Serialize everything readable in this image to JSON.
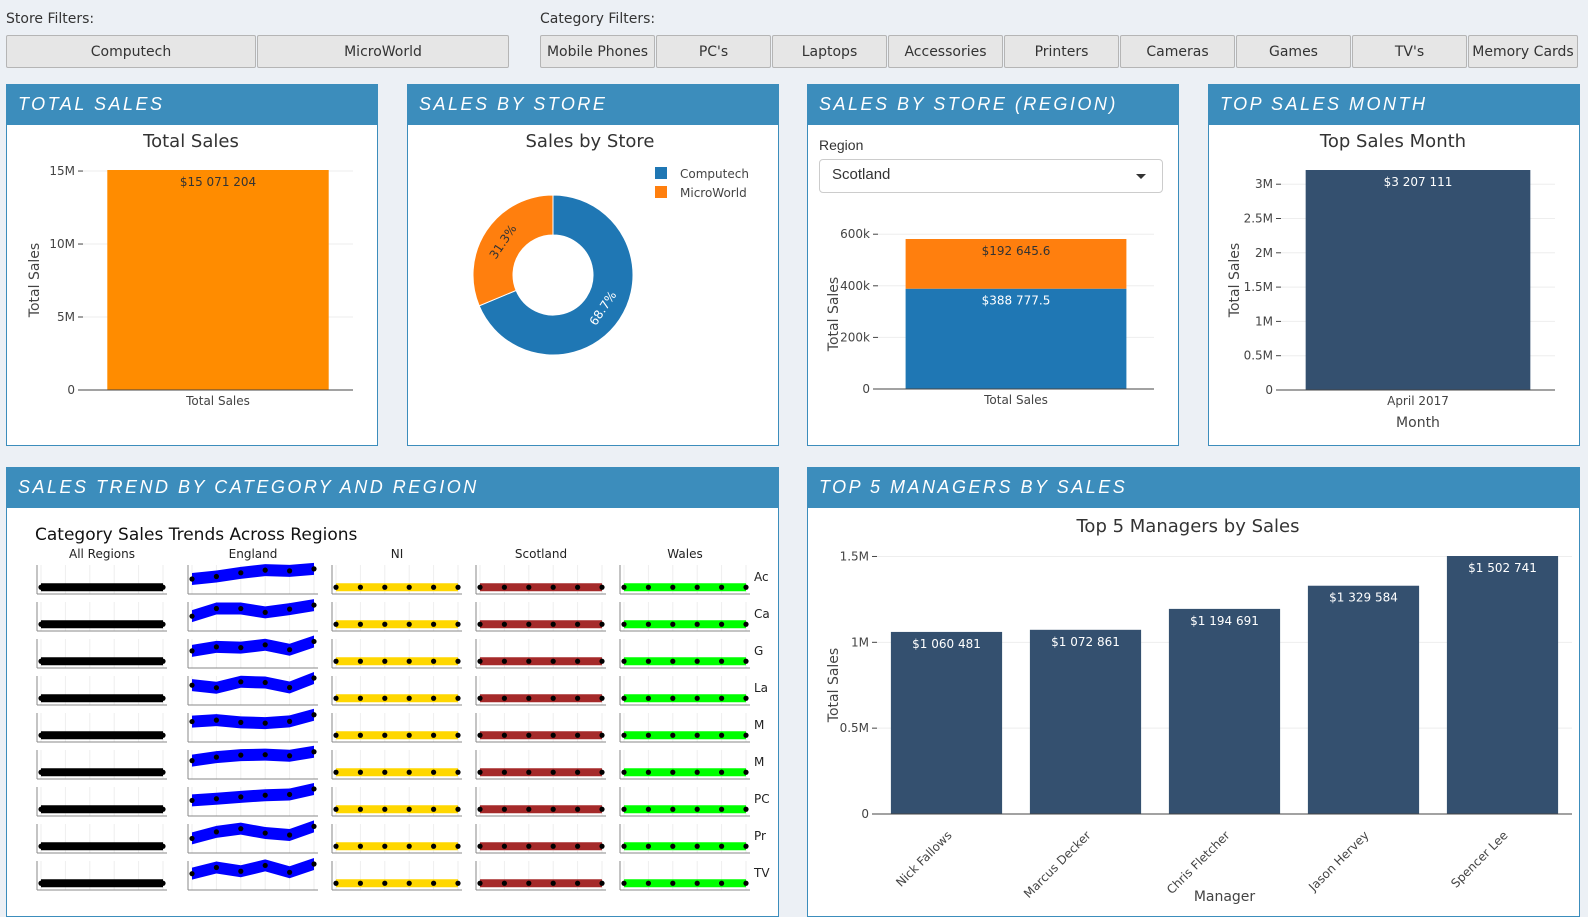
{
  "store_filters": {
    "label": "Store Filters:",
    "buttons": [
      "Computech",
      "MicroWorld"
    ]
  },
  "category_filters": {
    "label": "Category Filters:",
    "buttons": [
      "Mobile Phones",
      "PC's",
      "Laptops",
      "Accessories",
      "Printers",
      "Cameras",
      "Games",
      "TV's",
      "Memory Cards"
    ]
  },
  "panels": {
    "total_sales": "TOTAL SALES",
    "sales_by_store": "SALES BY STORE",
    "sales_by_store_region": "SALES BY STORE (REGION)",
    "top_sales_month": "TOP SALES MONTH",
    "sales_trend": "SALES TREND BY CATEGORY AND REGION",
    "top_managers": "TOP 5 MANAGERS BY SALES"
  },
  "region_select": {
    "label": "Region",
    "value": "Scotland"
  },
  "colors": {
    "header": "#3c8dbc",
    "orange": "#ff8c00",
    "plotly_orange": "#ff7f0e",
    "plotly_blue": "#1f77b4",
    "navy": "#34506f",
    "all_regions": "#000000",
    "england": "#0000ff",
    "ni": "#ffd700",
    "scotland": "#a52a2a",
    "wales": "#00ff00"
  },
  "chart_data": [
    {
      "id": "total_sales",
      "type": "bar",
      "title": "Total Sales",
      "categories": [
        "Total Sales"
      ],
      "values": [
        15071204
      ],
      "data_labels": [
        "$15 071 204"
      ],
      "ylabel": "Total Sales",
      "xlabel": "",
      "ylim": [
        0,
        15071204
      ],
      "yticks": [
        0,
        5000000,
        10000000,
        15000000
      ],
      "ytick_labels": [
        "0",
        "5M",
        "10M",
        "15M"
      ],
      "color": "#ff8c00"
    },
    {
      "id": "sales_by_store",
      "type": "pie",
      "title": "Sales by Store",
      "hole": 0.5,
      "labels": [
        "Computech",
        "MicroWorld"
      ],
      "values": [
        68.7,
        31.3
      ],
      "data_labels": [
        "68.7%",
        "31.3%"
      ],
      "colors": [
        "#1f77b4",
        "#ff7f0e"
      ],
      "legend": "top-right"
    },
    {
      "id": "sales_by_store_region",
      "type": "bar",
      "stacked": true,
      "title": "",
      "categories": [
        "Total Sales"
      ],
      "series": [
        {
          "name": "Computech",
          "values": [
            388777.5
          ],
          "data_label": "$388 777.5",
          "color": "#1f77b4"
        },
        {
          "name": "MicroWorld",
          "values": [
            192645.6
          ],
          "data_label": "$192 645.6",
          "color": "#ff7f0e"
        }
      ],
      "ylabel": "Total Sales",
      "xlabel": "",
      "ylim": [
        0,
        581423.1
      ],
      "yticks": [
        0,
        200000,
        400000,
        600000
      ],
      "ytick_labels": [
        "0",
        "200k",
        "400k",
        "600k"
      ]
    },
    {
      "id": "top_sales_month",
      "type": "bar",
      "title": "Top Sales Month",
      "categories": [
        "April 2017"
      ],
      "values": [
        3207111
      ],
      "data_labels": [
        "$3 207 111"
      ],
      "ylabel": "Total Sales",
      "xlabel": "Month",
      "ylim": [
        0,
        3207111
      ],
      "yticks": [
        0,
        500000,
        1000000,
        1500000,
        2000000,
        2500000,
        3000000
      ],
      "ytick_labels": [
        "0",
        "0.5M",
        "1M",
        "1.5M",
        "2M",
        "2.5M",
        "3M"
      ],
      "color": "#34506f"
    },
    {
      "id": "sales_trend",
      "type": "area",
      "title": "Category Sales Trends Across Regions",
      "regions": [
        "All Regions",
        "England",
        "NI",
        "Scotland",
        "Wales"
      ],
      "region_colors": [
        "#000000",
        "#0000ff",
        "#ffd700",
        "#a52a2a",
        "#00ff00"
      ],
      "row_labels": [
        "Ac",
        "Ca",
        "G",
        "La",
        "M",
        "M",
        "PC",
        "Pr",
        "TV"
      ],
      "relative_trend": [
        [
          0.3,
          0.35,
          0.3,
          0.3,
          0.32,
          0.3
        ],
        [
          0.35,
          0.45,
          0.5,
          0.5,
          0.45,
          0.6
        ],
        [
          0.2,
          0.2,
          0.2,
          0.2,
          0.2,
          0.2
        ],
        [
          0.55,
          0.6,
          0.58,
          0.56,
          0.6,
          0.55
        ],
        [
          0.3,
          0.3,
          0.3,
          0.3,
          0.3,
          0.3
        ]
      ]
    },
    {
      "id": "top_managers",
      "type": "bar",
      "title": "Top 5 Managers by Sales",
      "categories": [
        "Nick Fallows",
        "Marcus Decker",
        "Chris Fletcher",
        "Jason Hervey",
        "Spencer Lee"
      ],
      "values": [
        1060481,
        1072861,
        1194691,
        1329584,
        1502741
      ],
      "data_labels": [
        "$1 060 481",
        "$1 072 861",
        "$1 194 691",
        "$1 329 584",
        "$1 502 741"
      ],
      "ylabel": "Total Sales",
      "xlabel": "Manager",
      "ylim": [
        0,
        1502741
      ],
      "yticks": [
        0,
        500000,
        1000000,
        1500000
      ],
      "ytick_labels": [
        "0",
        "0.5M",
        "1M",
        "1.5M"
      ],
      "color": "#34506f"
    }
  ]
}
